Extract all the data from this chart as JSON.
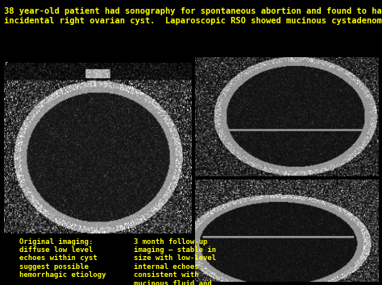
{
  "background_color": "#000000",
  "title_line1": "38 year-old patient had sonography for spontaneous abortion and found to have",
  "title_line2": "incidental right ovarian cyst.  Laparoscopic RSO showed mucinous cystadenoma.",
  "title_color": "#ffff00",
  "title_fontsize": 7.5,
  "annotation_left": "Original imaging:\ndiffuse low level\nechoes within cyst\nsuggest possible\nhemorrhagic etiology",
  "annotation_right": "3 month follow-up\nimaging – stable in\nsize with low-level\ninternal echoes\nconsistent with\nmucinous fluid and\nnow with septum",
  "annotation_color": "#ffff00",
  "annotation_fontsize": 6.5,
  "fig_width": 4.74,
  "fig_height": 3.54,
  "dpi": 100
}
